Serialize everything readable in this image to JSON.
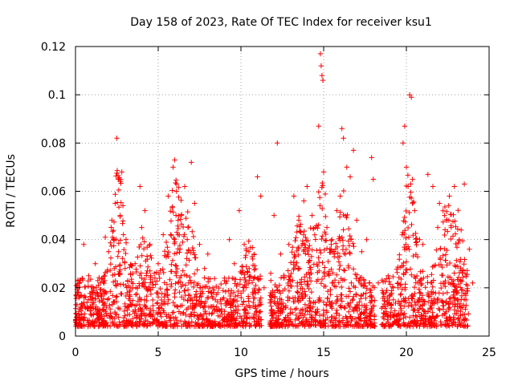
{
  "chart_data": {
    "type": "scatter",
    "title": "Day 158 of 2023, Rate Of TEC Index for receiver ksu1",
    "xlabel": "GPS time / hours",
    "ylabel": "ROTI / TECUs",
    "xlim": [
      0,
      25
    ],
    "ylim": [
      0,
      0.12
    ],
    "x_ticks": [
      0,
      5,
      10,
      15,
      20,
      25
    ],
    "x_tick_labels": [
      "0",
      "5",
      "10",
      "15",
      "20",
      "25"
    ],
    "y_ticks": [
      0,
      0.02,
      0.04,
      0.06,
      0.08,
      0.1,
      0.12
    ],
    "y_tick_labels": [
      "0",
      "0.02",
      "0.04",
      "0.06",
      "0.08",
      "0.1",
      "0.12"
    ],
    "grid": true,
    "marker": "+",
    "color": "#ff0000",
    "series": [
      {
        "x": [
          0.1,
          0.3,
          0.5,
          0.8,
          1.0,
          1.2,
          1.5,
          1.8,
          2.0,
          2.2,
          2.4,
          2.5,
          2.6,
          2.7,
          2.8,
          2.9,
          3.0,
          3.3,
          3.6,
          3.9,
          4.0,
          4.2,
          4.5,
          4.8,
          5.0,
          5.3,
          5.6,
          5.9,
          6.0,
          6.1,
          6.2,
          6.4,
          6.6,
          6.8,
          7.0,
          7.2,
          7.5,
          7.8,
          8.0,
          8.3,
          8.6,
          9.0,
          9.3,
          9.6,
          9.9,
          10.2,
          10.5,
          10.8,
          11.0,
          11.2,
          11.4,
          11.8,
          12.0,
          12.2,
          12.4,
          12.6,
          12.9,
          13.2,
          13.5,
          13.8,
          14.0,
          14.3,
          14.5,
          14.7,
          14.8,
          14.85,
          14.9,
          14.95,
          15.0,
          15.2,
          15.5,
          15.8,
          16.0,
          16.1,
          16.2,
          16.4,
          16.6,
          16.8,
          17.0,
          17.3,
          17.6,
          17.9,
          18.0,
          18.3,
          18.6,
          18.9,
          19.2,
          19.5,
          19.8,
          19.9,
          20.0,
          20.1,
          20.2,
          20.3,
          20.5,
          20.8,
          21.0,
          21.3,
          21.6,
          21.9,
          22.0,
          22.3,
          22.6,
          22.9,
          23.2,
          23.5,
          23.8,
          24.0
        ],
        "y": [
          0.021,
          0.012,
          0.038,
          0.025,
          0.018,
          0.03,
          0.022,
          0.041,
          0.035,
          0.048,
          0.055,
          0.082,
          0.065,
          0.05,
          0.068,
          0.042,
          0.028,
          0.019,
          0.03,
          0.062,
          0.045,
          0.052,
          0.038,
          0.024,
          0.03,
          0.042,
          0.058,
          0.07,
          0.073,
          0.06,
          0.048,
          0.05,
          0.062,
          0.045,
          0.072,
          0.055,
          0.038,
          0.028,
          0.034,
          0.02,
          0.018,
          0.024,
          0.04,
          0.03,
          0.052,
          0.038,
          0.028,
          0.024,
          0.066,
          0.058,
          0.02,
          0.026,
          0.05,
          0.08,
          0.034,
          0.024,
          0.038,
          0.058,
          0.048,
          0.056,
          0.062,
          0.05,
          0.045,
          0.087,
          0.117,
          0.112,
          0.108,
          0.106,
          0.068,
          0.045,
          0.04,
          0.052,
          0.058,
          0.086,
          0.082,
          0.07,
          0.066,
          0.077,
          0.048,
          0.035,
          0.04,
          0.074,
          0.065,
          0.022,
          0.018,
          0.025,
          0.02,
          0.02,
          0.08,
          0.087,
          0.07,
          0.062,
          0.1,
          0.099,
          0.052,
          0.04,
          0.038,
          0.067,
          0.062,
          0.045,
          0.055,
          0.05,
          0.058,
          0.062,
          0.04,
          0.063,
          0.036,
          0.022
        ]
      }
    ]
  }
}
